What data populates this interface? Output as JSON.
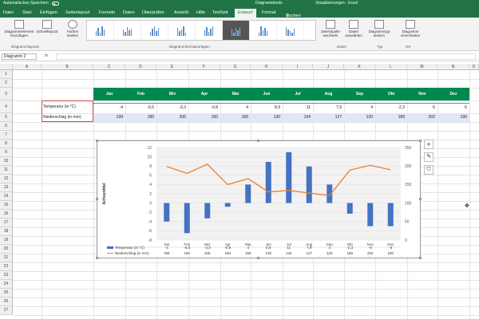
{
  "titlebar": {
    "autosave": "Automatisches Speichern",
    "chart_tools": "Diagrammtools",
    "visualizations": "Visualisierungen",
    "app": "Excel"
  },
  "tabs": [
    "Datei",
    "Start",
    "Einfügen",
    "Seitenlayout",
    "Formeln",
    "Daten",
    "Überprüfen",
    "Ansicht",
    "Hilfe",
    "TextSeit",
    "Entwurf",
    "Format"
  ],
  "active_tab": "Entwurf",
  "search_label": "Suchen",
  "ribbon": {
    "add_element": "Diagrammelement hinzufügen",
    "quick_layout": "Schnelllayout",
    "change_colors": "Farben ändern",
    "switch_row_col": "Zeile/Spalte wechseln",
    "select_data": "Daten auswählen",
    "change_type": "Diagrammtyp ändern",
    "move_chart": "Diagramm verschieben",
    "group_layouts": "Diagrammlayouts",
    "group_styles": "Diagrammformatvorlagen",
    "group_data": "Daten",
    "group_type": "Typ",
    "group_location": "Ort"
  },
  "namebox": "Diagramm 2",
  "fx": "fx",
  "columns": [
    "A",
    "B",
    "C",
    "D",
    "E",
    "F",
    "G",
    "H",
    "I",
    "J",
    "K",
    "L",
    "M",
    "N",
    "O"
  ],
  "rows": [
    "1",
    "2",
    "3",
    "4",
    "5",
    "6",
    "7",
    "8",
    "9",
    "10",
    "11",
    "12",
    "13",
    "14",
    "15",
    "16",
    "17",
    "18",
    "19",
    "20",
    "21",
    "22",
    "23",
    "24",
    "25",
    "26",
    "27"
  ],
  "table": {
    "months": [
      "Jan",
      "Feb",
      "Mrz",
      "Apr",
      "Mai",
      "Jun",
      "Jul",
      "Aug",
      "Sep",
      "Okt",
      "Nov",
      "Dez"
    ],
    "temp_label": "Temperatur (in °C)",
    "rain_label": "Niederschlag (in mm)",
    "temp": [
      "-4",
      "-6,5",
      "-3,3",
      "-0,8",
      "4",
      "8,9",
      "11",
      "7,9",
      "4",
      "-2,3",
      "-5",
      "-5"
    ],
    "rain": [
      "199",
      "180",
      "205",
      "150",
      "166",
      "130",
      "134",
      "127",
      "120",
      "189",
      "202",
      "190"
    ]
  },
  "chart_data": {
    "type": "bar",
    "categories": [
      "Jan",
      "Feb",
      "Mrz",
      "Apr",
      "Mai",
      "Jun",
      "Jul",
      "Aug",
      "Sep",
      "Okt",
      "Nov",
      "Dez"
    ],
    "series": [
      {
        "name": "Temperatur (in °C)",
        "type": "bar",
        "axis": "left",
        "color": "#4472c4",
        "values": [
          -4,
          -6.5,
          -3.3,
          -0.8,
          4,
          8.9,
          11,
          7.9,
          4,
          -2.3,
          -5,
          -5
        ]
      },
      {
        "name": "Niederschlag (in mm)",
        "type": "line",
        "axis": "right",
        "color": "#ed7d31",
        "values": [
          199,
          180,
          205,
          150,
          166,
          130,
          134,
          127,
          120,
          189,
          202,
          190
        ]
      }
    ],
    "ylabel": "Achsentitel",
    "ylim": [
      -8,
      12
    ],
    "yticks": [
      "12",
      "10",
      "8",
      "6",
      "4",
      "2",
      "0",
      "-2",
      "-4",
      "-6",
      "-8"
    ],
    "y2lim": [
      0,
      250
    ],
    "y2ticks": [
      "250",
      "200",
      "150",
      "100",
      "50",
      "0"
    ],
    "table_values_temp": [
      "-4",
      "-6,5",
      "-3,3",
      "-0,8",
      "4",
      "8,9",
      "11",
      "7,9",
      "4",
      "-2,3",
      "-5",
      "-5"
    ],
    "table_values_rain": [
      "199",
      "180",
      "205",
      "150",
      "166",
      "130",
      "134",
      "127",
      "120",
      "189",
      "202",
      "190"
    ],
    "grid": true,
    "legend": "bottom-table"
  },
  "side_buttons": [
    "+",
    "✎",
    "⛉"
  ]
}
